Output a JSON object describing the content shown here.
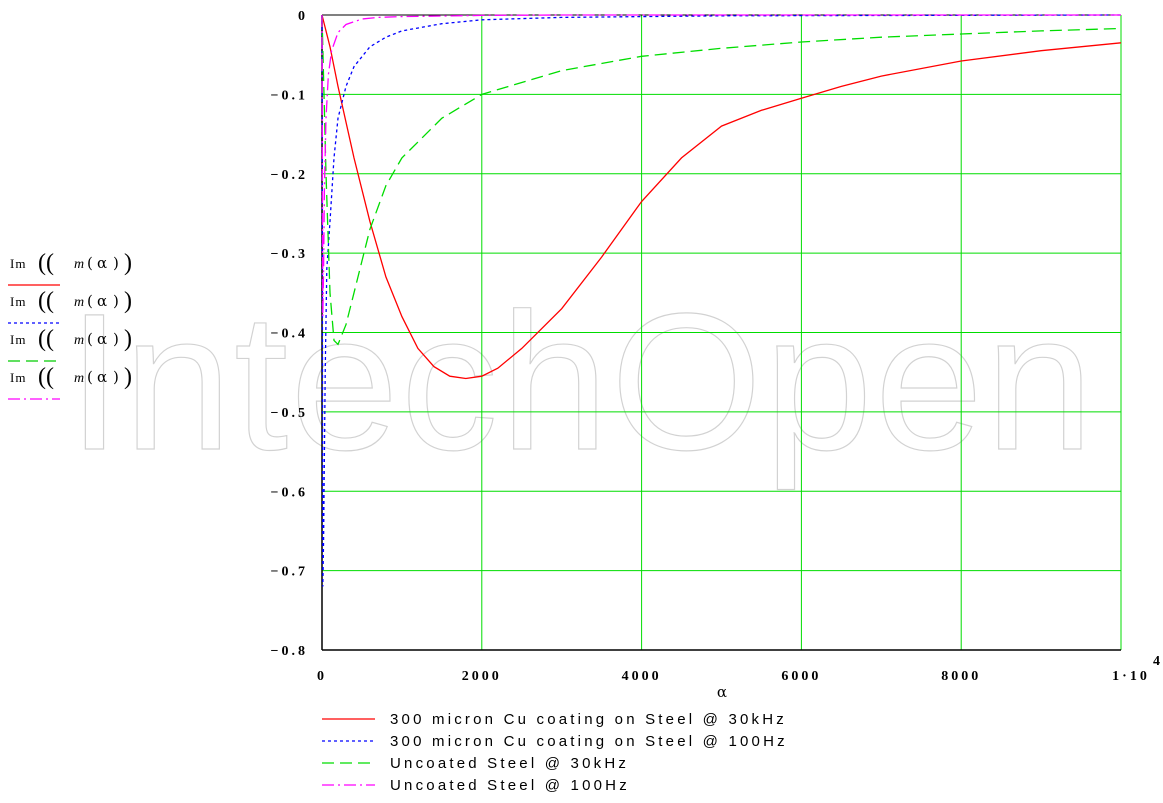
{
  "chart_data": {
    "type": "line",
    "xlabel": "α",
    "xlim": [
      0,
      10000
    ],
    "ylim": [
      -0.8,
      0
    ],
    "grid": true,
    "grid_color": "#00dd00",
    "x_ticks": [
      "0",
      "2000",
      "4000",
      "6000",
      "8000",
      "1·10"
    ],
    "x_ticks_last_exponent": "4",
    "y_ticks": [
      "0",
      "−0.1",
      "−0.2",
      "−0.3",
      "−0.4",
      "−0.5",
      "−0.6",
      "−0.7",
      "−0.8"
    ],
    "y_axis_labels": [
      {
        "text": "Im",
        "func": "m",
        "arg": "α",
        "color": "#ff0000",
        "dash": "solid"
      },
      {
        "text": "Im",
        "func": "m",
        "arg": "α",
        "color": "#0000ff",
        "dash": "dot"
      },
      {
        "text": "Im",
        "func": "m",
        "arg": "α",
        "color": "#00cc00",
        "dash": "dash"
      },
      {
        "text": "Im",
        "func": "m",
        "arg": "α",
        "color": "#ff00ff",
        "dash": "dashdot"
      }
    ],
    "legend_position": "bottom-left",
    "series": [
      {
        "name": "300 micron Cu coating on Steel @ 30kHz",
        "color": "#ff0000",
        "dash": "solid",
        "x": [
          0,
          100,
          200,
          400,
          600,
          800,
          1000,
          1200,
          1400,
          1600,
          1800,
          2000,
          2200,
          2500,
          3000,
          3500,
          4000,
          4500,
          5000,
          5500,
          6000,
          6500,
          7000,
          8000,
          9000,
          10000
        ],
        "y": [
          0,
          -0.04,
          -0.09,
          -0.18,
          -0.26,
          -0.33,
          -0.38,
          -0.42,
          -0.443,
          -0.455,
          -0.458,
          -0.455,
          -0.445,
          -0.42,
          -0.37,
          -0.305,
          -0.235,
          -0.18,
          -0.14,
          -0.12,
          -0.105,
          -0.09,
          -0.077,
          -0.058,
          -0.045,
          -0.035
        ]
      },
      {
        "name": "300 micron Cu coating on Steel @ 100Hz",
        "color": "#0000ff",
        "dash": "dot",
        "x": [
          0,
          10,
          20,
          40,
          60,
          100,
          150,
          200,
          300,
          400,
          600,
          800,
          1000,
          1500,
          2000,
          3000,
          5000,
          10000
        ],
        "y": [
          0,
          -0.72,
          -0.66,
          -0.45,
          -0.32,
          -0.26,
          -0.18,
          -0.13,
          -0.09,
          -0.065,
          -0.04,
          -0.028,
          -0.02,
          -0.011,
          -0.006,
          -0.003,
          -0.001,
          0
        ]
      },
      {
        "name": "Uncoated Steel @ 30kHz",
        "color": "#00dd00",
        "dash": "dash",
        "x": [
          0,
          50,
          100,
          150,
          200,
          300,
          400,
          600,
          800,
          1000,
          1500,
          2000,
          3000,
          4000,
          5000,
          6000,
          7000,
          8000,
          9000,
          10000
        ],
        "y": [
          0,
          -0.2,
          -0.35,
          -0.41,
          -0.415,
          -0.39,
          -0.35,
          -0.27,
          -0.215,
          -0.18,
          -0.13,
          -0.1,
          -0.07,
          -0.052,
          -0.042,
          -0.034,
          -0.028,
          -0.024,
          -0.02,
          -0.017
        ]
      },
      {
        "name": "Uncoated Steel @ 100Hz",
        "color": "#ff00ff",
        "dash": "dashdot",
        "x": [
          0,
          10,
          20,
          30,
          50,
          80,
          120,
          200,
          300,
          500,
          700,
          1000,
          2000,
          3000,
          10000
        ],
        "y": [
          0,
          -0.38,
          -0.32,
          -0.22,
          -0.13,
          -0.075,
          -0.045,
          -0.022,
          -0.012,
          -0.005,
          -0.003,
          -0.002,
          -0.0005,
          0,
          0
        ]
      }
    ]
  }
}
